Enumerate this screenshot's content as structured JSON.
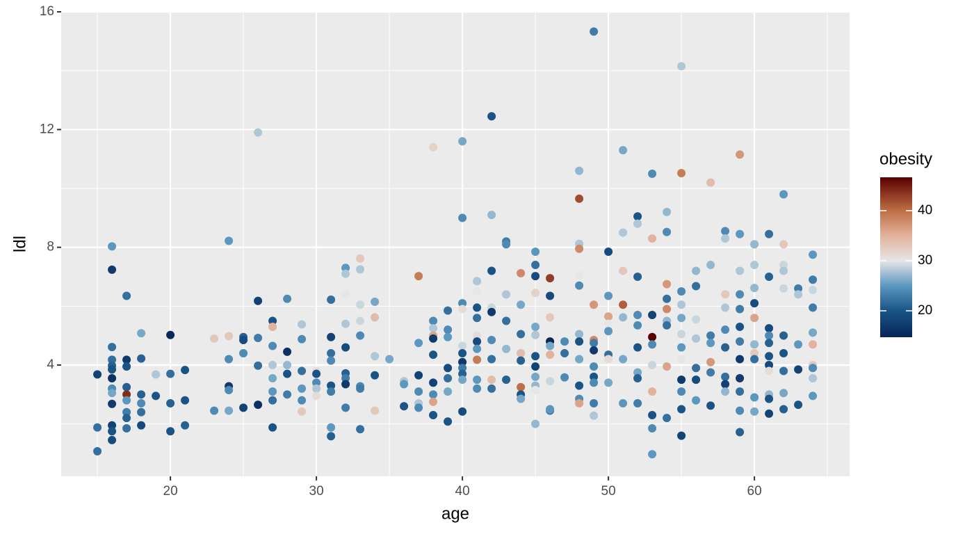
{
  "chart_data": {
    "type": "scatter",
    "xlabel": "age",
    "ylabel": "ldl",
    "xlim": [
      12.52,
      66.52
    ],
    "ylim": [
      0.22,
      16
    ],
    "xticks": [
      20,
      30,
      40,
      50,
      60
    ],
    "yticks": [
      4,
      8,
      12,
      16
    ],
    "xminor": [
      15,
      25,
      35,
      45,
      55,
      65
    ],
    "yminor": [
      2,
      6,
      10,
      14
    ],
    "grid": true,
    "x": [
      15,
      15,
      15,
      16,
      16,
      16,
      16,
      16,
      16,
      16,
      16,
      16,
      16,
      16,
      16,
      16,
      17,
      17,
      17,
      17,
      17,
      17,
      17,
      17,
      17,
      18,
      18,
      18,
      18,
      18,
      18,
      19,
      19,
      20,
      20,
      20,
      20,
      21,
      21,
      21,
      23,
      23,
      24,
      24,
      24,
      24,
      24,
      24,
      25,
      25,
      25,
      25,
      26,
      26,
      26,
      26,
      26,
      27,
      27,
      27,
      27,
      27,
      27,
      27,
      27,
      28,
      28,
      28,
      28,
      28,
      29,
      29,
      29,
      29,
      29,
      29,
      30,
      30,
      30,
      30,
      30,
      31,
      31,
      31,
      31,
      31,
      31,
      31,
      31,
      32,
      32,
      32,
      32,
      32,
      32,
      32,
      32,
      32,
      33,
      33,
      33,
      33,
      33,
      33,
      33,
      33,
      34,
      34,
      34,
      34,
      34,
      35,
      36,
      36,
      36,
      37,
      37,
      37,
      37,
      37,
      37,
      38,
      38,
      38,
      38,
      38,
      38,
      38,
      38,
      38,
      38,
      39,
      39,
      39,
      39,
      39,
      39,
      39,
      40,
      40,
      40,
      40,
      40,
      40,
      40,
      40,
      40,
      40,
      40,
      41,
      41,
      41,
      41,
      41,
      41,
      41,
      41,
      41,
      41,
      42,
      42,
      42,
      42,
      42,
      42,
      42,
      42,
      42,
      43,
      43,
      43,
      43,
      43,
      43,
      44,
      44,
      44,
      44,
      44,
      44,
      44,
      44,
      45,
      45,
      45,
      45,
      45,
      45,
      45,
      45,
      45,
      45,
      45,
      45,
      46,
      46,
      46,
      46,
      46,
      46,
      46,
      46,
      46,
      47,
      47,
      47,
      48,
      48,
      48,
      48,
      48,
      48,
      48,
      48,
      48,
      48,
      48,
      48,
      49,
      49,
      49,
      49,
      49,
      49,
      49,
      49,
      49,
      49,
      50,
      50,
      50,
      50,
      50,
      50,
      50,
      50,
      51,
      51,
      51,
      51,
      51,
      51,
      51,
      52,
      52,
      52,
      52,
      52,
      52,
      52,
      52,
      52,
      53,
      53,
      53,
      53,
      53,
      53,
      53,
      53,
      53,
      53,
      54,
      54,
      54,
      54,
      54,
      54,
      54,
      54,
      54,
      55,
      55,
      55,
      55,
      55,
      55,
      55,
      55,
      55,
      55,
      55,
      55,
      56,
      56,
      56,
      56,
      56,
      56,
      56,
      57,
      57,
      57,
      57,
      57,
      57,
      57,
      58,
      58,
      58,
      58,
      58,
      58,
      58,
      58,
      58,
      59,
      59,
      59,
      59,
      59,
      59,
      59,
      59,
      59,
      59,
      59,
      59,
      60,
      60,
      60,
      60,
      60,
      60,
      60,
      60,
      60,
      60,
      61,
      61,
      61,
      61,
      61,
      61,
      61,
      61,
      61,
      61,
      61,
      62,
      62,
      62,
      62,
      62,
      62,
      62,
      62,
      62,
      62,
      63,
      63,
      63,
      63,
      63,
      64,
      64,
      64,
      64,
      64,
      64,
      64,
      64,
      64,
      64
    ],
    "values": [
      3.68,
      1.88,
      1.07,
      8.03,
      7.24,
      4.61,
      4.18,
      3.98,
      3.85,
      3.55,
      3.2,
      3.05,
      2.68,
      1.95,
      1.75,
      1.45,
      6.35,
      4.18,
      3.95,
      3.25,
      3.0,
      2.8,
      2.4,
      2.2,
      1.85,
      5.08,
      4.22,
      3.0,
      2.7,
      2.4,
      1.95,
      3.68,
      2.95,
      5.02,
      3.7,
      2.7,
      1.75,
      3.83,
      2.8,
      1.95,
      4.9,
      2.45,
      8.22,
      4.98,
      4.2,
      3.28,
      3.15,
      2.45,
      4.95,
      4.85,
      4.4,
      2.55,
      11.9,
      6.18,
      4.92,
      3.98,
      2.65,
      5.5,
      5.3,
      4.65,
      4.0,
      3.55,
      3.1,
      2.8,
      1.88,
      6.25,
      4.45,
      4.0,
      3.7,
      3.0,
      5.38,
      4.88,
      3.8,
      3.2,
      2.8,
      2.42,
      3.8,
      3.7,
      3.4,
      3.2,
      2.95,
      6.22,
      4.95,
      4.4,
      4.15,
      3.3,
      3.1,
      1.88,
      1.58,
      7.3,
      7.1,
      6.4,
      5.4,
      4.6,
      3.72,
      3.55,
      3.35,
      2.55,
      7.62,
      7.25,
      6.05,
      5.5,
      5.0,
      3.28,
      3.2,
      1.82,
      6.15,
      5.62,
      4.3,
      3.65,
      2.45,
      4.2,
      3.45,
      3.35,
      2.6,
      7.02,
      4.75,
      3.65,
      3.1,
      2.7,
      2.55,
      11.4,
      5.5,
      5.25,
      5.0,
      4.9,
      4.35,
      3.4,
      3.0,
      2.75,
      2.3,
      5.85,
      5.2,
      4.95,
      3.9,
      3.55,
      3.1,
      2.08,
      11.6,
      9.0,
      6.1,
      5.9,
      4.65,
      4.4,
      4.1,
      3.9,
      3.7,
      3.5,
      2.42,
      6.85,
      6.5,
      5.95,
      5.6,
      5.0,
      4.8,
      4.55,
      4.18,
      3.5,
      3.2,
      12.45,
      9.1,
      7.2,
      5.95,
      5.8,
      4.85,
      4.2,
      3.5,
      3.2,
      8.2,
      8.1,
      6.4,
      5.5,
      4.55,
      3.5,
      7.12,
      6.05,
      5.05,
      4.4,
      4.15,
      3.25,
      3.0,
      2.85,
      7.85,
      7.4,
      7.02,
      6.45,
      5.3,
      5.02,
      4.3,
      3.95,
      3.6,
      3.3,
      3.15,
      2.0,
      6.95,
      6.35,
      5.62,
      4.8,
      4.65,
      4.35,
      3.45,
      2.45,
      2.5,
      4.8,
      4.4,
      3.58,
      10.6,
      9.65,
      8.12,
      7.95,
      7.05,
      6.7,
      5.05,
      4.8,
      4.2,
      3.3,
      2.85,
      2.7,
      15.33,
      6.05,
      4.85,
      4.75,
      4.5,
      3.95,
      3.6,
      3.4,
      2.7,
      2.28,
      7.85,
      6.35,
      5.65,
      5.4,
      5.15,
      4.35,
      4.2,
      3.4,
      11.3,
      8.5,
      7.2,
      6.05,
      5.62,
      4.2,
      2.7,
      9.05,
      8.8,
      7.0,
      5.7,
      5.35,
      4.6,
      3.75,
      3.55,
      2.7,
      10.5,
      8.3,
      5.7,
      4.95,
      4.7,
      4.0,
      3.1,
      2.3,
      1.85,
      0.97,
      9.2,
      8.52,
      6.75,
      6.25,
      5.9,
      5.5,
      5.35,
      3.95,
      2.2,
      14.15,
      10.52,
      6.5,
      6.05,
      5.6,
      5.05,
      4.6,
      4.2,
      3.5,
      3.1,
      2.5,
      1.6,
      7.2,
      6.68,
      5.55,
      4.9,
      3.9,
      3.5,
      2.8,
      10.2,
      7.4,
      5.0,
      4.75,
      4.1,
      3.75,
      2.62,
      8.55,
      8.3,
      6.4,
      5.95,
      5.2,
      4.6,
      3.6,
      3.35,
      3.1,
      11.15,
      8.45,
      7.2,
      6.4,
      5.9,
      5.3,
      4.8,
      4.2,
      3.55,
      3.1,
      2.45,
      1.72,
      8.1,
      7.4,
      6.62,
      6.1,
      5.6,
      4.7,
      4.4,
      4.2,
      2.9,
      2.42,
      8.45,
      7.0,
      5.25,
      5.0,
      4.75,
      4.3,
      4.0,
      3.8,
      3.0,
      2.85,
      2.35,
      9.8,
      8.1,
      7.4,
      7.2,
      6.6,
      5.0,
      4.4,
      3.8,
      3.05,
      2.5,
      6.6,
      6.4,
      4.7,
      3.85,
      2.65,
      7.75,
      6.9,
      6.55,
      5.95,
      5.1,
      4.7,
      4.0,
      3.9,
      3.55,
      2.95
    ],
    "color_values": [
      18,
      22,
      22,
      25,
      17,
      22,
      22,
      21,
      20,
      16,
      24,
      26,
      17,
      18,
      20,
      19,
      22,
      17,
      20,
      21,
      44,
      25,
      23,
      21,
      22,
      26,
      21,
      21,
      24,
      22,
      19,
      28,
      20,
      15,
      22,
      21,
      20,
      20,
      20,
      21,
      33,
      24,
      25,
      33,
      24,
      17,
      24,
      26,
      21,
      19,
      24,
      18,
      28,
      18,
      23,
      22,
      16,
      20,
      35,
      24,
      28,
      26,
      25,
      22,
      20,
      24,
      16,
      27,
      20,
      23,
      28,
      24,
      22,
      25,
      24,
      33,
      31,
      20,
      24,
      28,
      31,
      22,
      18,
      22,
      24,
      20,
      23,
      25,
      21,
      25,
      28,
      30,
      28,
      19,
      21,
      23,
      17,
      23,
      33,
      28,
      29,
      29,
      24,
      24,
      23,
      22,
      26,
      34,
      28,
      20,
      33,
      26,
      28,
      25,
      20,
      39,
      25,
      18,
      24,
      28,
      24,
      32,
      24,
      28,
      36,
      17,
      20,
      18,
      24,
      36,
      20,
      22,
      24,
      25,
      19,
      22,
      26,
      20,
      26,
      24,
      24,
      31,
      29,
      20,
      17,
      23,
      21,
      26,
      19,
      28,
      30,
      20,
      22,
      31,
      19,
      25,
      39,
      25,
      24,
      20,
      27,
      20,
      29,
      17,
      24,
      22,
      34,
      22,
      23,
      24,
      28,
      22,
      27,
      21,
      38,
      26,
      22,
      34,
      21,
      40,
      20,
      26,
      25,
      22,
      19,
      32,
      26,
      28,
      20,
      18,
      26,
      27,
      30,
      27,
      43,
      19,
      33,
      15,
      26,
      35,
      29,
      23,
      25,
      24,
      22,
      24,
      27,
      42,
      28,
      38,
      30,
      24,
      27,
      20,
      26,
      20,
      24,
      36,
      23,
      37,
      38,
      23,
      17,
      24,
      20,
      24,
      23,
      28,
      19,
      25,
      36,
      30,
      25,
      22,
      31,
      26,
      26,
      28,
      33,
      41,
      27,
      26,
      25,
      20,
      28,
      21,
      24,
      24,
      20,
      26,
      21,
      23,
      24,
      35,
      18,
      47,
      24,
      29,
      35,
      20,
      24,
      25,
      27,
      24,
      37,
      22,
      38,
      27,
      22,
      36,
      22,
      28,
      39,
      24,
      28,
      26,
      29,
      25,
      30,
      17,
      24,
      20,
      18,
      27,
      22,
      29,
      28,
      22,
      19,
      25,
      34,
      27,
      23,
      25,
      37,
      23,
      20,
      24,
      28,
      33,
      28,
      24,
      21,
      22,
      18,
      27,
      37,
      25,
      28,
      24,
      23,
      20,
      23,
      17,
      17,
      22,
      24,
      21,
      27,
      28,
      27,
      19,
      36,
      27,
      33,
      22,
      25,
      26,
      22,
      21,
      19,
      24,
      21,
      20,
      19,
      31,
      27,
      20,
      18,
      25,
      33,
      29,
      28,
      29,
      21,
      20,
      22,
      26,
      21,
      23,
      28,
      25,
      18,
      20,
      25,
      23,
      29,
      23,
      26,
      35,
      33,
      24,
      28,
      25
    ],
    "colorbar": {
      "title": "obesity",
      "lim": [
        14.72,
        46.67
      ],
      "ticks": [
        20,
        30,
        40
      ],
      "stops": [
        {
          "value": 14.72,
          "color": "#062656"
        },
        {
          "value": 20,
          "color": "#1a5486"
        },
        {
          "value": 25,
          "color": "#5b97bf"
        },
        {
          "value": 30,
          "color": "#e6e6e6"
        },
        {
          "value": 35,
          "color": "#e1b29c"
        },
        {
          "value": 40,
          "color": "#bf6e45"
        },
        {
          "value": 46.67,
          "color": "#5a0000"
        }
      ]
    }
  }
}
